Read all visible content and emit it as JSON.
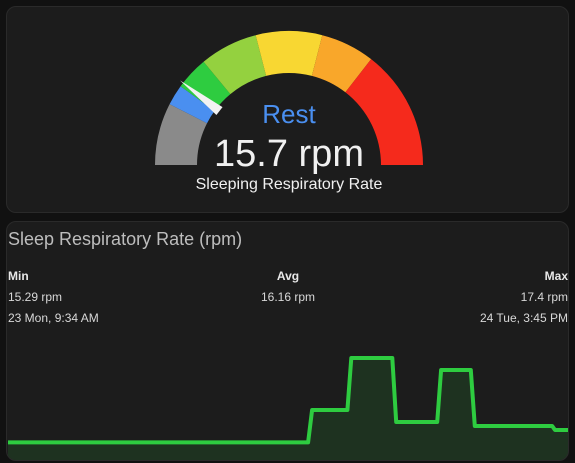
{
  "gauge": {
    "state": "Rest",
    "value": "15.7 rpm",
    "name": "Sleeping Respiratory Rate",
    "min": 0,
    "max": 100,
    "needle_percent": 21,
    "segments": [
      {
        "from": 0,
        "to": 15,
        "color": "#8a8a8a"
      },
      {
        "from": 15,
        "to": 20,
        "color": "#4a8ff0"
      },
      {
        "from": 20,
        "to": 28,
        "color": "#2ecc40"
      },
      {
        "from": 28,
        "to": 42,
        "color": "#94d13f"
      },
      {
        "from": 42,
        "to": 58,
        "color": "#f8d732"
      },
      {
        "from": 58,
        "to": 71,
        "color": "#f9a72a"
      },
      {
        "from": 71,
        "to": 100,
        "color": "#f52a1c"
      }
    ]
  },
  "graph": {
    "title": "Sleep Respiratory Rate (rpm)",
    "stats": {
      "min_label": "Min",
      "min_value": "15.29 rpm",
      "min_time": "23 Mon, 9:34 AM",
      "avg_label": "Avg",
      "avg_value": "16.16 rpm",
      "max_label": "Max",
      "max_value": "17.4 rpm",
      "max_time": "24 Tue, 3:45 PM"
    },
    "line_color": "#2ecc40"
  },
  "chart_data": {
    "type": "line",
    "title": "Sleep Respiratory Rate (rpm)",
    "xlabel": "",
    "ylabel": "",
    "x": [
      0,
      0.535,
      0.542,
      0.605,
      0.612,
      0.685,
      0.692,
      0.765,
      0.772,
      0.825,
      0.832,
      0.97,
      0.975,
      1.0
    ],
    "y": [
      15.29,
      15.29,
      16.1,
      16.1,
      17.4,
      17.4,
      15.8,
      15.8,
      17.1,
      17.1,
      15.7,
      15.7,
      15.6,
      15.6
    ],
    "ylim": [
      15.2,
      17.5
    ],
    "grid": false
  }
}
